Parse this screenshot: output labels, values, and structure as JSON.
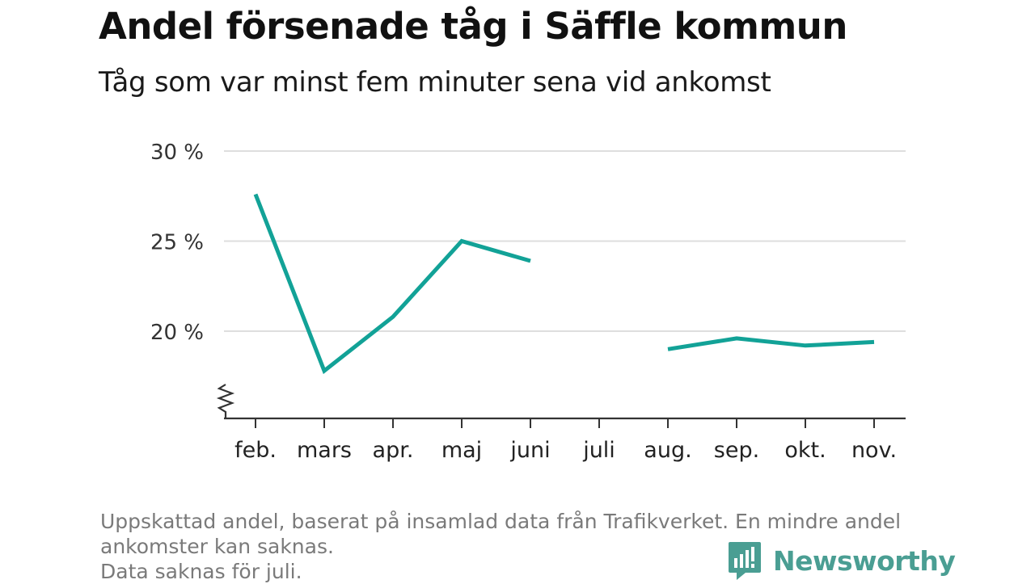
{
  "title": "Andel försenade tåg i Säffle kommun",
  "subtitle": "Tåg som var minst fem minuter sena vid ankomst",
  "footer": {
    "line1": "Uppskattad andel, baserat på insamlad data från Trafikverket. En mindre andel",
    "line2": "ankomster kan saknas.",
    "line3": "Data saknas för juli."
  },
  "brand": {
    "name": "Newsworthy",
    "color": "#4a9e93"
  },
  "colors": {
    "line": "#12a297",
    "grid": "#dedede",
    "axis": "#333333"
  },
  "chart_data": {
    "type": "line",
    "title": "Andel försenade tåg i Säffle kommun",
    "subtitle": "Tåg som var minst fem minuter sena vid ankomst",
    "categories": [
      "feb.",
      "mars",
      "apr.",
      "maj",
      "juni",
      "juli",
      "aug.",
      "sep.",
      "okt.",
      "nov."
    ],
    "series": [
      {
        "values": [
          27.6,
          17.8,
          20.8,
          25.0,
          23.9,
          null,
          19.0,
          19.6,
          19.2,
          19.4
        ]
      }
    ],
    "y_ticks": [
      20,
      25,
      30
    ],
    "y_tick_labels": [
      "20 %",
      "25 %",
      "30 %"
    ],
    "ylim": [
      15,
      30
    ],
    "y_axis_break": true,
    "grid": true,
    "legend": "none"
  }
}
